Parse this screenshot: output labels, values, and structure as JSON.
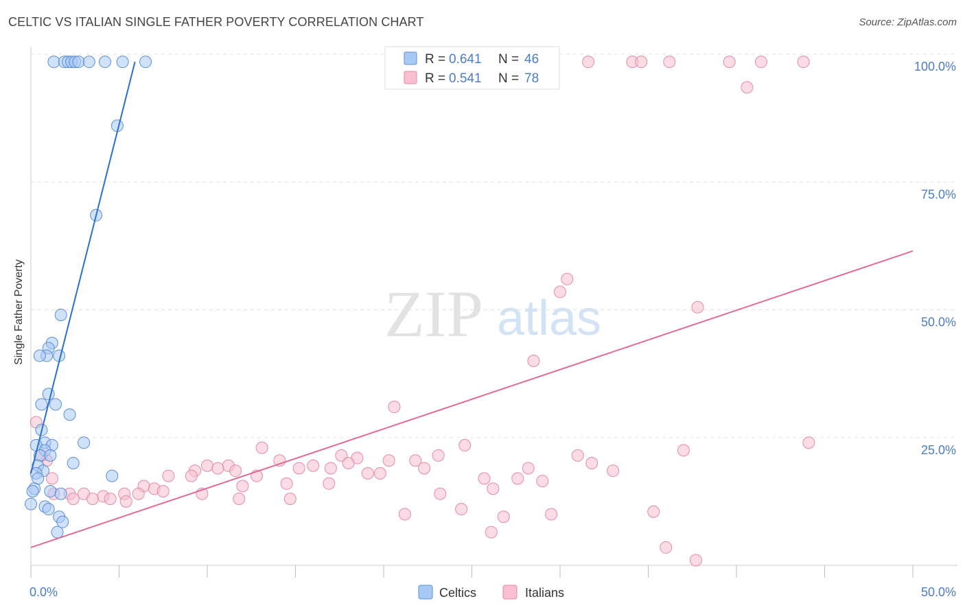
{
  "header": {
    "title": "CELTIC VS ITALIAN SINGLE FATHER POVERTY CORRELATION CHART",
    "source": "Source: ZipAtlas.com"
  },
  "colors": {
    "celtics_fill": "#a9c9f5",
    "celtics_stroke": "#5b8fd6",
    "celtics_line": "#2a6fcf",
    "italians_fill": "#f8bfd0",
    "italians_stroke": "#e58aa6",
    "italians_line": "#e26b93",
    "accent_text": "#4a7cc8"
  },
  "watermark": {
    "zip": "ZIP",
    "atlas": "atlas"
  },
  "legend": {
    "r_label": "R =",
    "n_label": "N =",
    "celtics": {
      "r": "0.641",
      "n": "46"
    },
    "italians": {
      "r": "0.541",
      "n": "78"
    }
  },
  "chart_data": {
    "type": "scatter",
    "title": "CELTIC VS ITALIAN SINGLE FATHER POVERTY CORRELATION CHART",
    "xlabel": "",
    "ylabel": "Single Father Poverty",
    "xlim": [
      0,
      50
    ],
    "ylim": [
      0,
      100
    ],
    "x_tick_labels": [
      "0.0%",
      "50.0%"
    ],
    "y_tick_labels": [
      "100.0%",
      "75.0%",
      "50.0%",
      "25.0%"
    ],
    "y_tick_values": [
      100,
      75,
      50,
      25
    ],
    "legend_position": "bottom-center",
    "series": [
      {
        "name": "Celtics",
        "r": 0.641,
        "n": 46,
        "trend": {
          "x": [
            0.0,
            5.9
          ],
          "y": [
            18.0,
            98.5
          ]
        },
        "points": [
          {
            "x": 1.3,
            "y": 98.5
          },
          {
            "x": 1.9,
            "y": 98.5
          },
          {
            "x": 2.1,
            "y": 98.5
          },
          {
            "x": 2.3,
            "y": 98.5
          },
          {
            "x": 2.5,
            "y": 98.5
          },
          {
            "x": 2.7,
            "y": 98.5
          },
          {
            "x": 3.3,
            "y": 98.5
          },
          {
            "x": 4.2,
            "y": 98.5
          },
          {
            "x": 5.2,
            "y": 98.5
          },
          {
            "x": 6.5,
            "y": 98.5
          },
          {
            "x": 4.9,
            "y": 86.0
          },
          {
            "x": 3.7,
            "y": 68.5
          },
          {
            "x": 1.7,
            "y": 49.0
          },
          {
            "x": 1.2,
            "y": 43.5
          },
          {
            "x": 1.0,
            "y": 42.5
          },
          {
            "x": 0.9,
            "y": 41.0
          },
          {
            "x": 1.6,
            "y": 41.0
          },
          {
            "x": 0.5,
            "y": 41.0
          },
          {
            "x": 1.0,
            "y": 33.5
          },
          {
            "x": 0.6,
            "y": 31.5
          },
          {
            "x": 1.4,
            "y": 31.5
          },
          {
            "x": 2.2,
            "y": 29.5
          },
          {
            "x": 0.6,
            "y": 26.5
          },
          {
            "x": 0.8,
            "y": 24.0
          },
          {
            "x": 1.2,
            "y": 23.5
          },
          {
            "x": 3.0,
            "y": 24.0
          },
          {
            "x": 0.3,
            "y": 23.5
          },
          {
            "x": 0.8,
            "y": 22.5
          },
          {
            "x": 0.5,
            "y": 21.5
          },
          {
            "x": 1.1,
            "y": 21.5
          },
          {
            "x": 2.4,
            "y": 20.0
          },
          {
            "x": 0.4,
            "y": 19.5
          },
          {
            "x": 0.7,
            "y": 18.5
          },
          {
            "x": 0.3,
            "y": 18.0
          },
          {
            "x": 0.4,
            "y": 17.0
          },
          {
            "x": 4.6,
            "y": 17.5
          },
          {
            "x": 0.2,
            "y": 15.0
          },
          {
            "x": 0.1,
            "y": 14.5
          },
          {
            "x": 1.1,
            "y": 14.5
          },
          {
            "x": 1.7,
            "y": 14.0
          },
          {
            "x": 0.8,
            "y": 11.5
          },
          {
            "x": 1.0,
            "y": 11.0
          },
          {
            "x": 1.6,
            "y": 9.5
          },
          {
            "x": 1.8,
            "y": 8.5
          },
          {
            "x": 1.5,
            "y": 6.5
          },
          {
            "x": 0.0,
            "y": 12.0
          }
        ]
      },
      {
        "name": "Italians",
        "r": 0.541,
        "n": 78,
        "trend": {
          "x": [
            0.0,
            50.0
          ],
          "y": [
            3.5,
            61.5
          ]
        },
        "points": [
          {
            "x": 31.6,
            "y": 98.5
          },
          {
            "x": 34.1,
            "y": 98.5
          },
          {
            "x": 34.6,
            "y": 98.5
          },
          {
            "x": 36.2,
            "y": 98.5
          },
          {
            "x": 39.6,
            "y": 98.5
          },
          {
            "x": 41.4,
            "y": 98.5
          },
          {
            "x": 43.8,
            "y": 98.5
          },
          {
            "x": 40.6,
            "y": 93.5
          },
          {
            "x": 30.4,
            "y": 56.0
          },
          {
            "x": 30.0,
            "y": 53.5
          },
          {
            "x": 37.8,
            "y": 50.5
          },
          {
            "x": 28.5,
            "y": 40.0
          },
          {
            "x": 20.6,
            "y": 31.0
          },
          {
            "x": 44.1,
            "y": 24.0
          },
          {
            "x": 37.0,
            "y": 22.5
          },
          {
            "x": 24.6,
            "y": 23.5
          },
          {
            "x": 13.1,
            "y": 23.0
          },
          {
            "x": 23.1,
            "y": 21.5
          },
          {
            "x": 31.0,
            "y": 21.5
          },
          {
            "x": 17.6,
            "y": 21.5
          },
          {
            "x": 18.5,
            "y": 21.0
          },
          {
            "x": 14.1,
            "y": 20.5
          },
          {
            "x": 20.3,
            "y": 20.5
          },
          {
            "x": 21.8,
            "y": 20.5
          },
          {
            "x": 31.8,
            "y": 20.0
          },
          {
            "x": 11.2,
            "y": 19.5
          },
          {
            "x": 18.0,
            "y": 20.0
          },
          {
            "x": 16.0,
            "y": 19.5
          },
          {
            "x": 10.0,
            "y": 19.5
          },
          {
            "x": 10.6,
            "y": 19.0
          },
          {
            "x": 11.6,
            "y": 18.5
          },
          {
            "x": 22.3,
            "y": 19.0
          },
          {
            "x": 28.2,
            "y": 19.0
          },
          {
            "x": 33.0,
            "y": 18.5
          },
          {
            "x": 9.3,
            "y": 18.5
          },
          {
            "x": 15.2,
            "y": 19.0
          },
          {
            "x": 17.0,
            "y": 19.0
          },
          {
            "x": 19.1,
            "y": 18.0
          },
          {
            "x": 19.8,
            "y": 18.0
          },
          {
            "x": 12.8,
            "y": 17.5
          },
          {
            "x": 7.8,
            "y": 17.5
          },
          {
            "x": 9.1,
            "y": 17.5
          },
          {
            "x": 25.7,
            "y": 17.0
          },
          {
            "x": 27.6,
            "y": 17.0
          },
          {
            "x": 29.0,
            "y": 16.5
          },
          {
            "x": 16.9,
            "y": 16.0
          },
          {
            "x": 12.0,
            "y": 15.5
          },
          {
            "x": 14.5,
            "y": 16.0
          },
          {
            "x": 6.4,
            "y": 15.5
          },
          {
            "x": 26.2,
            "y": 15.0
          },
          {
            "x": 7.0,
            "y": 15.0
          },
          {
            "x": 7.5,
            "y": 14.5
          },
          {
            "x": 1.3,
            "y": 14.0
          },
          {
            "x": 2.2,
            "y": 14.0
          },
          {
            "x": 3.0,
            "y": 14.0
          },
          {
            "x": 5.3,
            "y": 14.0
          },
          {
            "x": 6.1,
            "y": 14.0
          },
          {
            "x": 9.7,
            "y": 14.0
          },
          {
            "x": 23.2,
            "y": 14.0
          },
          {
            "x": 4.1,
            "y": 13.5
          },
          {
            "x": 11.8,
            "y": 13.0
          },
          {
            "x": 14.7,
            "y": 13.0
          },
          {
            "x": 4.5,
            "y": 13.0
          },
          {
            "x": 3.5,
            "y": 13.0
          },
          {
            "x": 5.4,
            "y": 12.5
          },
          {
            "x": 2.4,
            "y": 13.0
          },
          {
            "x": 24.4,
            "y": 11.0
          },
          {
            "x": 35.3,
            "y": 10.5
          },
          {
            "x": 21.2,
            "y": 10.0
          },
          {
            "x": 29.5,
            "y": 10.0
          },
          {
            "x": 26.8,
            "y": 9.5
          },
          {
            "x": 26.1,
            "y": 6.5
          },
          {
            "x": 36.0,
            "y": 3.5
          },
          {
            "x": 37.7,
            "y": 1.0
          },
          {
            "x": 0.3,
            "y": 28.0
          },
          {
            "x": 0.9,
            "y": 20.5
          },
          {
            "x": 1.2,
            "y": 17.0
          },
          {
            "x": 0.6,
            "y": 21.5
          }
        ]
      }
    ]
  },
  "bottom_legend": {
    "celtics_label": "Celtics",
    "italians_label": "Italians"
  }
}
